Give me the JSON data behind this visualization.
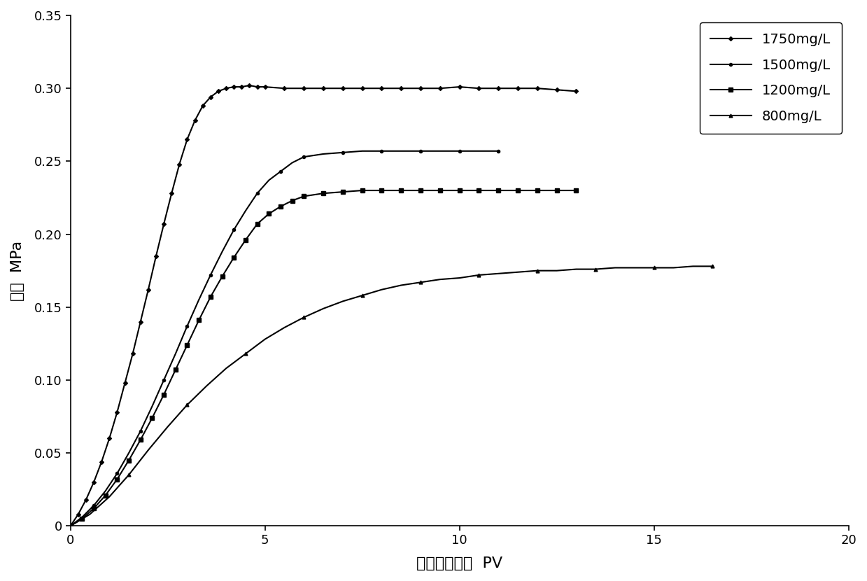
{
  "title": "",
  "xlabel": "注入空隙体积  PV",
  "ylabel": "压力  MPa",
  "xlim": [
    0,
    20
  ],
  "ylim": [
    0,
    0.35
  ],
  "xticks": [
    0,
    5,
    10,
    15,
    20
  ],
  "yticks": [
    0,
    0.05,
    0.1,
    0.15,
    0.2,
    0.25,
    0.3,
    0.35
  ],
  "background_color": "#ffffff",
  "line_color": "#000000",
  "series": [
    {
      "label": "1750mg/L",
      "marker": "D",
      "markersize": 3.0,
      "markevery": 1,
      "linewidth": 1.5,
      "x": [
        0,
        0.2,
        0.4,
        0.6,
        0.8,
        1.0,
        1.2,
        1.4,
        1.6,
        1.8,
        2.0,
        2.2,
        2.4,
        2.6,
        2.8,
        3.0,
        3.2,
        3.4,
        3.6,
        3.8,
        4.0,
        4.2,
        4.4,
        4.6,
        4.8,
        5.0,
        5.5,
        6.0,
        6.5,
        7.0,
        7.5,
        8.0,
        8.5,
        9.0,
        9.5,
        10.0,
        10.5,
        11.0,
        11.5,
        12.0,
        12.5,
        13.0
      ],
      "y": [
        0,
        0.008,
        0.018,
        0.03,
        0.044,
        0.06,
        0.078,
        0.098,
        0.118,
        0.14,
        0.162,
        0.185,
        0.207,
        0.228,
        0.248,
        0.265,
        0.278,
        0.288,
        0.294,
        0.298,
        0.3,
        0.301,
        0.301,
        0.302,
        0.301,
        0.301,
        0.3,
        0.3,
        0.3,
        0.3,
        0.3,
        0.3,
        0.3,
        0.3,
        0.3,
        0.301,
        0.3,
        0.3,
        0.3,
        0.3,
        0.299,
        0.298
      ]
    },
    {
      "label": "1500mg/L",
      "marker": "o",
      "markersize": 3.0,
      "markevery": 2,
      "linewidth": 1.5,
      "x": [
        0,
        0.3,
        0.6,
        0.9,
        1.2,
        1.5,
        1.8,
        2.1,
        2.4,
        2.7,
        3.0,
        3.3,
        3.6,
        3.9,
        4.2,
        4.5,
        4.8,
        5.1,
        5.4,
        5.7,
        6.0,
        6.5,
        7.0,
        7.5,
        8.0,
        8.5,
        9.0,
        9.5,
        10.0,
        10.5,
        11.0
      ],
      "y": [
        0,
        0.006,
        0.014,
        0.024,
        0.036,
        0.05,
        0.065,
        0.082,
        0.1,
        0.118,
        0.137,
        0.155,
        0.172,
        0.188,
        0.203,
        0.216,
        0.228,
        0.237,
        0.243,
        0.249,
        0.253,
        0.255,
        0.256,
        0.257,
        0.257,
        0.257,
        0.257,
        0.257,
        0.257,
        0.257,
        0.257
      ]
    },
    {
      "label": "1200mg/L",
      "marker": "s",
      "markersize": 4.0,
      "markevery": 1,
      "linewidth": 1.5,
      "x": [
        0,
        0.3,
        0.6,
        0.9,
        1.2,
        1.5,
        1.8,
        2.1,
        2.4,
        2.7,
        3.0,
        3.3,
        3.6,
        3.9,
        4.2,
        4.5,
        4.8,
        5.1,
        5.4,
        5.7,
        6.0,
        6.5,
        7.0,
        7.5,
        8.0,
        8.5,
        9.0,
        9.5,
        10.0,
        10.5,
        11.0,
        11.5,
        12.0,
        12.5,
        13.0
      ],
      "y": [
        0,
        0.005,
        0.012,
        0.021,
        0.032,
        0.045,
        0.059,
        0.074,
        0.09,
        0.107,
        0.124,
        0.141,
        0.157,
        0.171,
        0.184,
        0.196,
        0.207,
        0.214,
        0.219,
        0.223,
        0.226,
        0.228,
        0.229,
        0.23,
        0.23,
        0.23,
        0.23,
        0.23,
        0.23,
        0.23,
        0.23,
        0.23,
        0.23,
        0.23,
        0.23
      ]
    },
    {
      "label": "800mg/L",
      "marker": "^",
      "markersize": 3.5,
      "markevery": 3,
      "linewidth": 1.5,
      "x": [
        0,
        0.5,
        1.0,
        1.5,
        2.0,
        2.5,
        3.0,
        3.5,
        4.0,
        4.5,
        5.0,
        5.5,
        6.0,
        6.5,
        7.0,
        7.5,
        8.0,
        8.5,
        9.0,
        9.5,
        10.0,
        10.5,
        11.0,
        11.5,
        12.0,
        12.5,
        13.0,
        13.5,
        14.0,
        14.5,
        15.0,
        15.5,
        16.0,
        16.5
      ],
      "y": [
        0,
        0.008,
        0.02,
        0.035,
        0.052,
        0.068,
        0.083,
        0.096,
        0.108,
        0.118,
        0.128,
        0.136,
        0.143,
        0.149,
        0.154,
        0.158,
        0.162,
        0.165,
        0.167,
        0.169,
        0.17,
        0.172,
        0.173,
        0.174,
        0.175,
        0.175,
        0.176,
        0.176,
        0.177,
        0.177,
        0.177,
        0.177,
        0.178,
        0.178
      ]
    }
  ]
}
